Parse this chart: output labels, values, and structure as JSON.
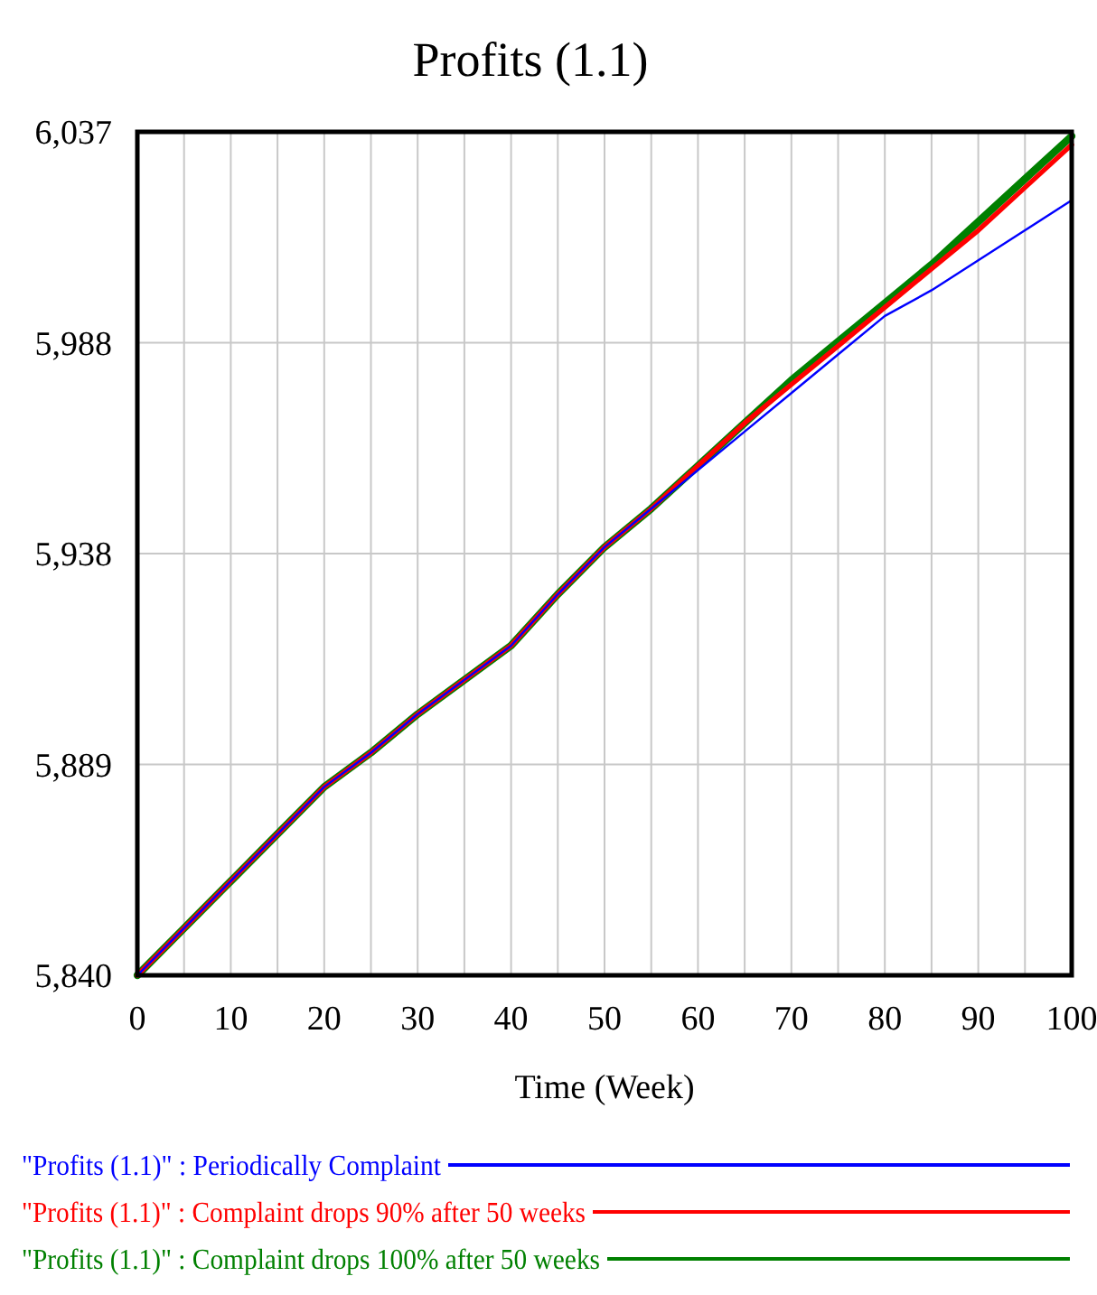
{
  "chart_data": {
    "type": "line",
    "title": "Profits (1.1)",
    "xlabel": "Time (Week)",
    "x": [
      0,
      5,
      10,
      15,
      20,
      25,
      30,
      35,
      40,
      45,
      50,
      55,
      60,
      65,
      70,
      75,
      80,
      85,
      90,
      95,
      100
    ],
    "series": [
      {
        "name": "\"Profits (1.1)\" : Periodically Complaint",
        "color": "#0000ff",
        "values": [
          5840,
          5851,
          5862,
          5873,
          5884,
          5892,
          5901,
          5909,
          5917,
          5929,
          5940,
          5949,
          5958,
          5967,
          5976,
          5985,
          5994,
          6000,
          6007,
          6014,
          6021
        ]
      },
      {
        "name": "\"Profits (1.1)\" : Complaint drops 90% after 50 weeks",
        "color": "#ff0000",
        "values": [
          5840,
          5851,
          5862,
          5873,
          5884,
          5892,
          5901,
          5909,
          5917,
          5929,
          5940,
          5949,
          5959,
          5969,
          5978,
          5987,
          5996,
          6005,
          6014,
          6024,
          6034
        ]
      },
      {
        "name": "\"Profits (1.1)\" : Complaint drops 100% after 50 weeks",
        "color": "#008000",
        "values": [
          5840,
          5851,
          5862,
          5873,
          5884,
          5892,
          5901,
          5909,
          5917,
          5929,
          5940,
          5949,
          5959,
          5969,
          5979,
          5988,
          5997,
          6006,
          6016,
          6026,
          6036
        ]
      }
    ],
    "xlim": [
      0,
      100
    ],
    "xticks": [
      0,
      10,
      20,
      30,
      40,
      50,
      60,
      70,
      80,
      90,
      100
    ],
    "ylim": [
      5840,
      6037
    ],
    "yticks": [
      {
        "value": 5840,
        "label": "5,840"
      },
      {
        "value": 5889.25,
        "label": "5,889"
      },
      {
        "value": 5938.5,
        "label": "5,938"
      },
      {
        "value": 5987.75,
        "label": "5,988"
      },
      {
        "value": 6037,
        "label": "6,037"
      }
    ],
    "grid": true,
    "legend": "bottom",
    "line_style": "solid"
  }
}
